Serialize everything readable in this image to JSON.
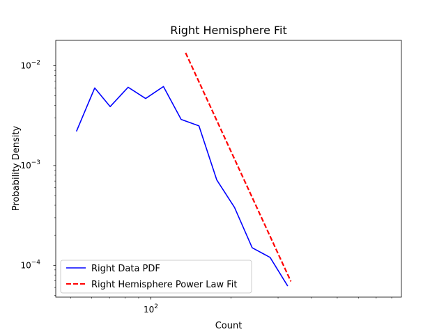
{
  "chart_data": {
    "type": "line",
    "title": "Right Hemisphere Fit",
    "xlabel": "Count",
    "ylabel": "Probability Density",
    "xscale": "log",
    "yscale": "log",
    "xlim": [
      44,
      870
    ],
    "ylim": [
      4.8e-05,
      0.018
    ],
    "x_major_ticks": [
      {
        "value": 100,
        "base": "10",
        "exp": "2"
      }
    ],
    "x_minor_ticks": [
      50,
      60,
      70,
      80,
      90,
      200,
      300,
      400,
      500,
      600,
      700,
      800
    ],
    "y_major_ticks": [
      {
        "value": 0.0001,
        "base": "10",
        "exp": "−4"
      },
      {
        "value": 0.001,
        "base": "10",
        "exp": "−3"
      },
      {
        "value": 0.01,
        "base": "10",
        "exp": "−2"
      }
    ],
    "legend_position": "lower-left",
    "series": [
      {
        "name": "Right Data PDF",
        "color": "#0000ff",
        "style": "solid",
        "points": [
          [
            52.6,
            0.0022
          ],
          [
            61.6,
            0.006
          ],
          [
            70.4,
            0.0039
          ],
          [
            82.2,
            0.0061
          ],
          [
            95.6,
            0.0047
          ],
          [
            111.5,
            0.0062
          ],
          [
            129.9,
            0.0029
          ],
          [
            151.5,
            0.0025
          ],
          [
            176.6,
            0.00072
          ],
          [
            206.0,
            0.00038
          ],
          [
            239.9,
            0.00015
          ],
          [
            280.0,
            0.00012
          ],
          [
            326.0,
            6.2e-05
          ]
        ]
      },
      {
        "name": "Right Hemisphere Power Law Fit",
        "color": "#ff0000",
        "style": "dashed",
        "points": [
          [
            135,
            0.0135
          ],
          [
            335,
            6.9e-05
          ]
        ]
      }
    ]
  }
}
